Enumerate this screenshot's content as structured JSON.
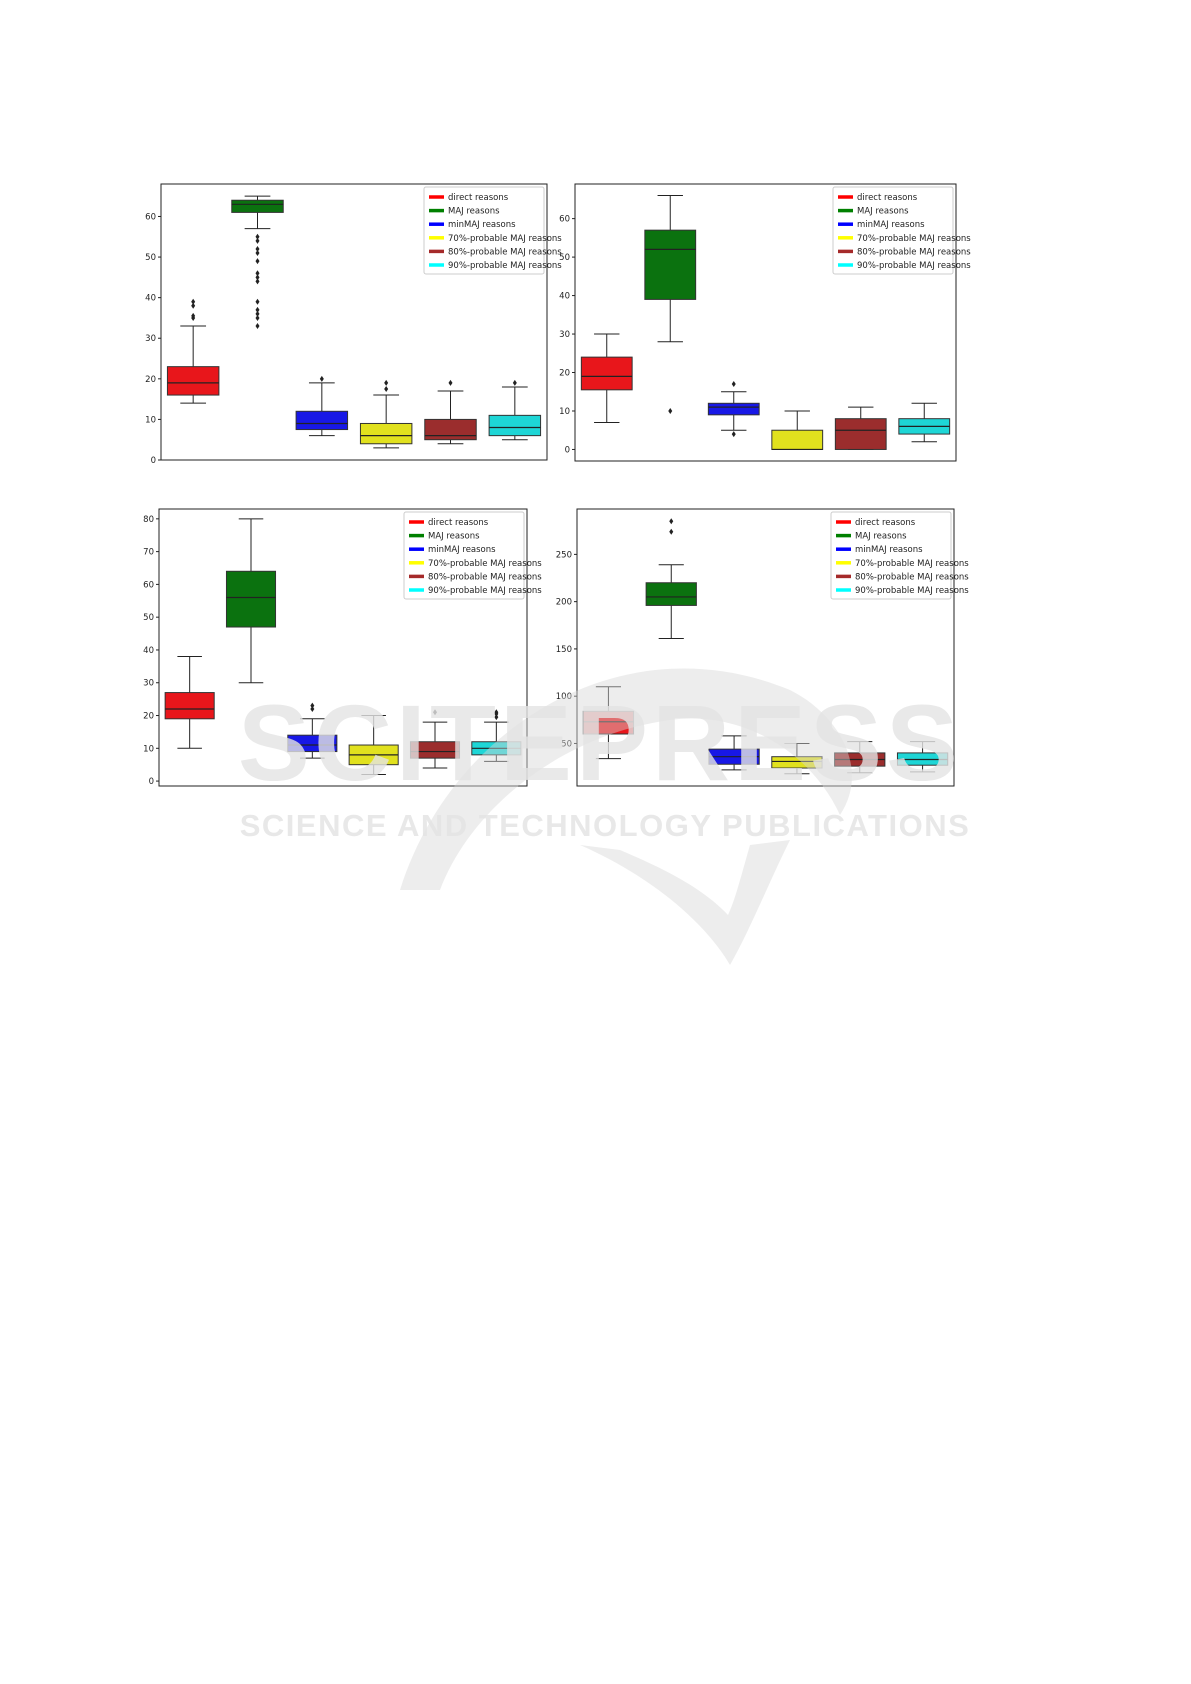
{
  "series_names": [
    "direct reasons",
    "MAJ reasons",
    "minMAJ reasons",
    "70%-probable MAJ reasons",
    "80%-probable MAJ reasons",
    "90%-probable MAJ reasons"
  ],
  "colors": [
    "#e8161b",
    "#0b720f",
    "#1818e6",
    "#e1e11e",
    "#9b2d2d",
    "#1ed6d6"
  ],
  "legend_colors": [
    "#ff0000",
    "#008000",
    "#0000ff",
    "#ffff00",
    "#a52a2a",
    "#00ffff"
  ],
  "watermark": {
    "word": "SCITEPRESS",
    "tagline": "SCIENCE AND TECHNOLOGY PUBLICATIONS"
  },
  "chart_data": [
    {
      "type": "box",
      "ylim": [
        0,
        68
      ],
      "yticks": [
        0,
        10,
        20,
        30,
        40,
        50,
        60
      ],
      "legend_position": "upper-right",
      "boxes": [
        {
          "q1": 16,
          "median": 19,
          "q3": 23,
          "low": 14,
          "high": 33,
          "fliers": [
            35,
            35.5,
            38,
            39
          ]
        },
        {
          "q1": 61,
          "median": 63,
          "q3": 64,
          "low": 57,
          "high": 65,
          "fliers": [
            33,
            35,
            36,
            37,
            39,
            44,
            45,
            46,
            49,
            51,
            52,
            54,
            55
          ]
        },
        {
          "q1": 7.5,
          "median": 9,
          "q3": 12,
          "low": 6,
          "high": 19,
          "fliers": [
            20
          ]
        },
        {
          "q1": 4,
          "median": 6,
          "q3": 9,
          "low": 3,
          "high": 16,
          "fliers": [
            17.5,
            19
          ]
        },
        {
          "q1": 5,
          "median": 6,
          "q3": 10,
          "low": 4,
          "high": 17,
          "fliers": [
            19
          ]
        },
        {
          "q1": 6,
          "median": 8,
          "q3": 11,
          "low": 5,
          "high": 18,
          "fliers": [
            19
          ]
        }
      ]
    },
    {
      "type": "box",
      "ylim": [
        -3,
        69
      ],
      "yticks": [
        0,
        10,
        20,
        30,
        40,
        50,
        60
      ],
      "legend_position": "upper-right",
      "boxes": [
        {
          "q1": 15.5,
          "median": 19,
          "q3": 24,
          "low": 7,
          "high": 30,
          "fliers": []
        },
        {
          "q1": 39,
          "median": 52,
          "q3": 57,
          "low": 28,
          "high": 66,
          "fliers": [
            10
          ]
        },
        {
          "q1": 9,
          "median": 11,
          "q3": 12,
          "low": 5,
          "high": 15,
          "fliers": [
            4,
            17
          ]
        },
        {
          "q1": 0,
          "median": 0,
          "q3": 5,
          "low": 0,
          "high": 10,
          "fliers": []
        },
        {
          "q1": 0,
          "median": 5,
          "q3": 8,
          "low": 0,
          "high": 11,
          "fliers": []
        },
        {
          "q1": 4,
          "median": 6,
          "q3": 8,
          "low": 2,
          "high": 12,
          "fliers": []
        }
      ]
    },
    {
      "type": "box",
      "ylim": [
        -1.5,
        83
      ],
      "yticks": [
        0,
        10,
        20,
        30,
        40,
        50,
        60,
        70,
        80
      ],
      "legend_position": "upper-right",
      "boxes": [
        {
          "q1": 19,
          "median": 22,
          "q3": 27,
          "low": 10,
          "high": 38,
          "fliers": []
        },
        {
          "q1": 47,
          "median": 56,
          "q3": 64,
          "low": 30,
          "high": 80,
          "fliers": []
        },
        {
          "q1": 9,
          "median": 11,
          "q3": 14,
          "low": 7,
          "high": 19,
          "fliers": [
            22,
            23
          ]
        },
        {
          "q1": 5,
          "median": 8,
          "q3": 11,
          "low": 2,
          "high": 20,
          "fliers": []
        },
        {
          "q1": 7,
          "median": 9,
          "q3": 12,
          "low": 4,
          "high": 18,
          "fliers": [
            21
          ]
        },
        {
          "q1": 8,
          "median": 10,
          "q3": 12,
          "low": 6,
          "high": 18,
          "fliers": [
            19.5,
            20.5,
            21
          ]
        }
      ]
    },
    {
      "type": "box",
      "ylim": [
        5,
        298
      ],
      "yticks": [
        50,
        100,
        150,
        200,
        250
      ],
      "legend_position": "upper-right",
      "boxes": [
        {
          "q1": 60,
          "median": 73,
          "q3": 84,
          "low": 34,
          "high": 110,
          "fliers": []
        },
        {
          "q1": 196,
          "median": 205,
          "q3": 220,
          "low": 161,
          "high": 239,
          "fliers": [
            274,
            285
          ]
        },
        {
          "q1": 28,
          "median": 36,
          "q3": 44,
          "low": 22,
          "high": 58,
          "fliers": []
        },
        {
          "q1": 24,
          "median": 31,
          "q3": 36,
          "low": 18,
          "high": 50,
          "fliers": []
        },
        {
          "q1": 26,
          "median": 33,
          "q3": 40,
          "low": 19,
          "high": 52,
          "fliers": []
        },
        {
          "q1": 27,
          "median": 33,
          "q3": 40,
          "low": 20,
          "high": 52,
          "fliers": []
        }
      ]
    }
  ]
}
